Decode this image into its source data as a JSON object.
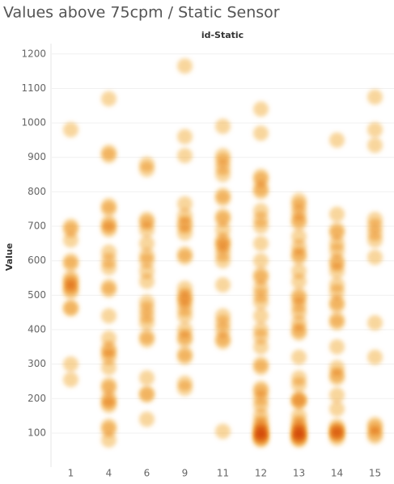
{
  "chart_data": {
    "type": "scatter",
    "title": "Values above 75cpm / Static Sensor",
    "column_header": "id-Static",
    "y_label": "Value",
    "color": "#f2b44a",
    "grid": true,
    "ylim": [
      0,
      1230
    ],
    "yticks": [
      100,
      200,
      300,
      400,
      500,
      600,
      700,
      800,
      900,
      1000,
      1100,
      1200
    ],
    "categories": [
      "1",
      "4",
      "6",
      "9",
      "11",
      "12",
      "13",
      "14",
      "15"
    ],
    "values": [
      [
        980,
        700,
        690,
        660,
        600,
        590,
        550,
        540,
        530,
        520,
        510,
        465,
        460,
        300,
        255
      ],
      [
        1070,
        915,
        905,
        760,
        750,
        710,
        700,
        690,
        625,
        600,
        580,
        525,
        515,
        440,
        375,
        345,
        335,
        320,
        290,
        240,
        230,
        200,
        190,
        180,
        120,
        110,
        80
      ],
      [
        880,
        865,
        720,
        710,
        690,
        650,
        615,
        600,
        570,
        540,
        480,
        460,
        440,
        420,
        380,
        370,
        260,
        215,
        210,
        140
      ],
      [
        1165,
        960,
        905,
        765,
        730,
        710,
        700,
        680,
        620,
        610,
        520,
        500,
        490,
        480,
        460,
        440,
        400,
        380,
        370,
        330,
        320,
        245,
        230
      ],
      [
        990,
        905,
        890,
        870,
        850,
        790,
        780,
        730,
        720,
        690,
        660,
        650,
        640,
        620,
        600,
        530,
        440,
        420,
        400,
        375,
        365,
        105
      ],
      [
        1040,
        970,
        845,
        835,
        810,
        800,
        745,
        720,
        700,
        650,
        600,
        560,
        550,
        520,
        500,
        480,
        440,
        400,
        380,
        350,
        300,
        290,
        230,
        220,
        200,
        180,
        150,
        130,
        120,
        110,
        105,
        100,
        95,
        90,
        85,
        80
      ],
      [
        775,
        760,
        740,
        720,
        710,
        670,
        640,
        620,
        610,
        570,
        540,
        500,
        490,
        470,
        450,
        420,
        400,
        390,
        320,
        260,
        240,
        200,
        195,
        190,
        150,
        130,
        120,
        110,
        105,
        100,
        95,
        90,
        85,
        80
      ],
      [
        950,
        735,
        690,
        680,
        650,
        630,
        600,
        590,
        570,
        530,
        510,
        480,
        470,
        430,
        420,
        350,
        290,
        270,
        260,
        210,
        170,
        120,
        110,
        105,
        100,
        95,
        85
      ],
      [
        1075,
        980,
        935,
        720,
        700,
        680,
        660,
        610,
        420,
        320,
        125,
        115,
        100,
        90
      ]
    ]
  }
}
